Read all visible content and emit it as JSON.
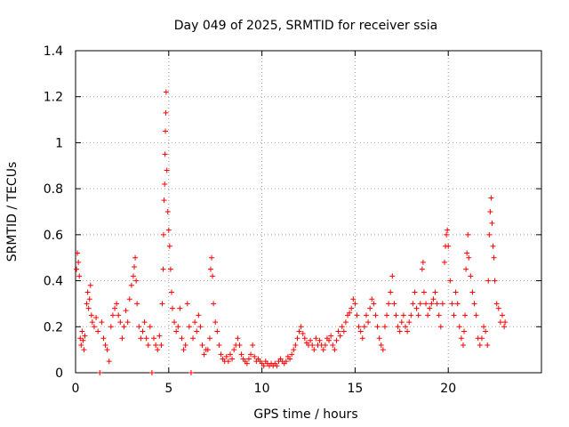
{
  "chart_data": {
    "type": "scatter",
    "title": "Day 049 of 2025, SRMTID for receiver ssia",
    "xlabel": "GPS time / hours",
    "ylabel": "SRMTID / TECUs",
    "xlim": [
      0,
      25
    ],
    "ylim": [
      0,
      1.4
    ],
    "x_ticks": [
      0,
      5,
      10,
      15,
      20
    ],
    "y_ticks": [
      0,
      0.2,
      0.4,
      0.6,
      0.8,
      1.0,
      1.2,
      1.4
    ],
    "x_tick_labels": [
      "0",
      "5",
      "10",
      "15",
      "20"
    ],
    "y_tick_labels": [
      "0",
      "0.2",
      "0.4",
      "0.6",
      "0.8",
      "1",
      "1.2",
      "1.4"
    ],
    "grid": true,
    "marker": "+",
    "color": "#ff0000",
    "series": [
      {
        "name": "SRMTID",
        "points": [
          [
            0.05,
            0.45
          ],
          [
            0.1,
            0.52
          ],
          [
            0.15,
            0.48
          ],
          [
            0.2,
            0.42
          ],
          [
            0.25,
            0.15
          ],
          [
            0.3,
            0.12
          ],
          [
            0.35,
            0.18
          ],
          [
            0.4,
            0.14
          ],
          [
            0.45,
            0.1
          ],
          [
            0.5,
            0.16
          ],
          [
            0.6,
            0.3
          ],
          [
            0.65,
            0.35
          ],
          [
            0.7,
            0.28
          ],
          [
            0.75,
            0.32
          ],
          [
            0.8,
            0.38
          ],
          [
            0.85,
            0.25
          ],
          [
            0.9,
            0.22
          ],
          [
            1.0,
            0.2
          ],
          [
            1.1,
            0.24
          ],
          [
            1.2,
            0.18
          ],
          [
            1.3,
            0.0
          ],
          [
            1.4,
            0.22
          ],
          [
            1.5,
            0.15
          ],
          [
            1.6,
            0.12
          ],
          [
            1.7,
            0.1
          ],
          [
            1.8,
            0.05
          ],
          [
            1.9,
            0.2
          ],
          [
            2.0,
            0.25
          ],
          [
            2.1,
            0.28
          ],
          [
            2.2,
            0.3
          ],
          [
            2.3,
            0.25
          ],
          [
            2.4,
            0.22
          ],
          [
            2.5,
            0.15
          ],
          [
            2.6,
            0.2
          ],
          [
            2.7,
            0.27
          ],
          [
            2.8,
            0.22
          ],
          [
            2.9,
            0.32
          ],
          [
            3.0,
            0.38
          ],
          [
            3.1,
            0.42
          ],
          [
            3.15,
            0.46
          ],
          [
            3.2,
            0.5
          ],
          [
            3.25,
            0.4
          ],
          [
            3.3,
            0.3
          ],
          [
            3.4,
            0.2
          ],
          [
            3.5,
            0.15
          ],
          [
            3.6,
            0.18
          ],
          [
            3.7,
            0.22
          ],
          [
            3.8,
            0.15
          ],
          [
            3.9,
            0.12
          ],
          [
            4.0,
            0.2
          ],
          [
            4.1,
            0.0
          ],
          [
            4.2,
            0.15
          ],
          [
            4.3,
            0.12
          ],
          [
            4.4,
            0.1
          ],
          [
            4.5,
            0.16
          ],
          [
            4.6,
            0.12
          ],
          [
            4.65,
            0.3
          ],
          [
            4.7,
            0.45
          ],
          [
            4.72,
            0.6
          ],
          [
            4.75,
            0.75
          ],
          [
            4.78,
            0.82
          ],
          [
            4.8,
            0.95
          ],
          [
            4.82,
            1.05
          ],
          [
            4.84,
            1.13
          ],
          [
            4.86,
            1.22
          ],
          [
            4.9,
            0.88
          ],
          [
            4.95,
            0.7
          ],
          [
            5.0,
            0.62
          ],
          [
            5.05,
            0.55
          ],
          [
            5.1,
            0.45
          ],
          [
            5.15,
            0.35
          ],
          [
            5.2,
            0.28
          ],
          [
            5.3,
            0.22
          ],
          [
            5.4,
            0.18
          ],
          [
            5.5,
            0.2
          ],
          [
            5.6,
            0.28
          ],
          [
            5.7,
            0.15
          ],
          [
            5.8,
            0.1
          ],
          [
            5.9,
            0.12
          ],
          [
            6.0,
            0.3
          ],
          [
            6.1,
            0.2
          ],
          [
            6.2,
            0.0
          ],
          [
            6.3,
            0.15
          ],
          [
            6.4,
            0.22
          ],
          [
            6.5,
            0.18
          ],
          [
            6.6,
            0.25
          ],
          [
            6.7,
            0.2
          ],
          [
            6.8,
            0.12
          ],
          [
            6.9,
            0.08
          ],
          [
            7.0,
            0.1
          ],
          [
            7.1,
            0.1
          ],
          [
            7.2,
            0.15
          ],
          [
            7.25,
            0.45
          ],
          [
            7.3,
            0.5
          ],
          [
            7.35,
            0.42
          ],
          [
            7.4,
            0.3
          ],
          [
            7.5,
            0.22
          ],
          [
            7.6,
            0.18
          ],
          [
            7.7,
            0.12
          ],
          [
            7.8,
            0.08
          ],
          [
            7.9,
            0.06
          ],
          [
            8.0,
            0.05
          ],
          [
            8.1,
            0.07
          ],
          [
            8.2,
            0.05
          ],
          [
            8.3,
            0.08
          ],
          [
            8.4,
            0.06
          ],
          [
            8.5,
            0.1
          ],
          [
            8.6,
            0.12
          ],
          [
            8.7,
            0.15
          ],
          [
            8.8,
            0.12
          ],
          [
            8.9,
            0.08
          ],
          [
            9.0,
            0.06
          ],
          [
            9.1,
            0.05
          ],
          [
            9.2,
            0.04
          ],
          [
            9.3,
            0.06
          ],
          [
            9.4,
            0.08
          ],
          [
            9.5,
            0.12
          ],
          [
            9.6,
            0.07
          ],
          [
            9.7,
            0.05
          ],
          [
            9.8,
            0.06
          ],
          [
            9.9,
            0.05
          ],
          [
            10.0,
            0.04
          ],
          [
            10.1,
            0.03
          ],
          [
            10.2,
            0.05
          ],
          [
            10.3,
            0.04
          ],
          [
            10.4,
            0.03
          ],
          [
            10.5,
            0.04
          ],
          [
            10.6,
            0.03
          ],
          [
            10.7,
            0.04
          ],
          [
            10.8,
            0.03
          ],
          [
            10.9,
            0.05
          ],
          [
            11.0,
            0.06
          ],
          [
            11.1,
            0.05
          ],
          [
            11.2,
            0.04
          ],
          [
            11.3,
            0.05
          ],
          [
            11.4,
            0.07
          ],
          [
            11.5,
            0.06
          ],
          [
            11.6,
            0.08
          ],
          [
            11.7,
            0.1
          ],
          [
            11.8,
            0.12
          ],
          [
            11.9,
            0.15
          ],
          [
            12.0,
            0.18
          ],
          [
            12.1,
            0.2
          ],
          [
            12.2,
            0.17
          ],
          [
            12.3,
            0.15
          ],
          [
            12.4,
            0.13
          ],
          [
            12.5,
            0.12
          ],
          [
            12.6,
            0.14
          ],
          [
            12.7,
            0.12
          ],
          [
            12.8,
            0.1
          ],
          [
            12.9,
            0.15
          ],
          [
            13.0,
            0.12
          ],
          [
            13.1,
            0.14
          ],
          [
            13.2,
            0.12
          ],
          [
            13.3,
            0.1
          ],
          [
            13.4,
            0.12
          ],
          [
            13.5,
            0.15
          ],
          [
            13.6,
            0.14
          ],
          [
            13.7,
            0.16
          ],
          [
            13.8,
            0.12
          ],
          [
            13.9,
            0.1
          ],
          [
            14.0,
            0.14
          ],
          [
            14.1,
            0.18
          ],
          [
            14.2,
            0.16
          ],
          [
            14.3,
            0.2
          ],
          [
            14.4,
            0.18
          ],
          [
            14.5,
            0.22
          ],
          [
            14.6,
            0.25
          ],
          [
            14.7,
            0.26
          ],
          [
            14.8,
            0.28
          ],
          [
            14.9,
            0.32
          ],
          [
            15.0,
            0.3
          ],
          [
            15.1,
            0.25
          ],
          [
            15.2,
            0.2
          ],
          [
            15.3,
            0.18
          ],
          [
            15.4,
            0.15
          ],
          [
            15.5,
            0.2
          ],
          [
            15.6,
            0.25
          ],
          [
            15.7,
            0.22
          ],
          [
            15.8,
            0.28
          ],
          [
            15.9,
            0.32
          ],
          [
            16.0,
            0.3
          ],
          [
            16.1,
            0.25
          ],
          [
            16.2,
            0.2
          ],
          [
            16.3,
            0.15
          ],
          [
            16.4,
            0.12
          ],
          [
            16.5,
            0.1
          ],
          [
            16.6,
            0.2
          ],
          [
            16.7,
            0.25
          ],
          [
            16.8,
            0.3
          ],
          [
            16.9,
            0.35
          ],
          [
            17.0,
            0.42
          ],
          [
            17.1,
            0.3
          ],
          [
            17.2,
            0.25
          ],
          [
            17.3,
            0.2
          ],
          [
            17.4,
            0.18
          ],
          [
            17.5,
            0.22
          ],
          [
            17.6,
            0.25
          ],
          [
            17.7,
            0.2
          ],
          [
            17.8,
            0.18
          ],
          [
            17.9,
            0.22
          ],
          [
            18.0,
            0.25
          ],
          [
            18.1,
            0.3
          ],
          [
            18.2,
            0.35
          ],
          [
            18.3,
            0.28
          ],
          [
            18.4,
            0.25
          ],
          [
            18.5,
            0.3
          ],
          [
            18.6,
            0.45
          ],
          [
            18.65,
            0.48
          ],
          [
            18.7,
            0.35
          ],
          [
            18.8,
            0.3
          ],
          [
            18.9,
            0.25
          ],
          [
            19.0,
            0.28
          ],
          [
            19.1,
            0.3
          ],
          [
            19.2,
            0.32
          ],
          [
            19.3,
            0.35
          ],
          [
            19.4,
            0.3
          ],
          [
            19.5,
            0.25
          ],
          [
            19.6,
            0.2
          ],
          [
            19.7,
            0.3
          ],
          [
            19.8,
            0.48
          ],
          [
            19.85,
            0.55
          ],
          [
            19.9,
            0.6
          ],
          [
            19.95,
            0.62
          ],
          [
            20.0,
            0.55
          ],
          [
            20.1,
            0.4
          ],
          [
            20.2,
            0.3
          ],
          [
            20.3,
            0.25
          ],
          [
            20.4,
            0.35
          ],
          [
            20.5,
            0.3
          ],
          [
            20.6,
            0.2
          ],
          [
            20.7,
            0.15
          ],
          [
            20.8,
            0.12
          ],
          [
            20.85,
            0.18
          ],
          [
            20.9,
            0.25
          ],
          [
            20.95,
            0.45
          ],
          [
            21.0,
            0.52
          ],
          [
            21.05,
            0.6
          ],
          [
            21.1,
            0.5
          ],
          [
            21.2,
            0.42
          ],
          [
            21.3,
            0.35
          ],
          [
            21.4,
            0.3
          ],
          [
            21.5,
            0.25
          ],
          [
            21.6,
            0.15
          ],
          [
            21.7,
            0.12
          ],
          [
            21.8,
            0.15
          ],
          [
            21.9,
            0.2
          ],
          [
            22.0,
            0.18
          ],
          [
            22.1,
            0.12
          ],
          [
            22.15,
            0.4
          ],
          [
            22.2,
            0.6
          ],
          [
            22.25,
            0.7
          ],
          [
            22.3,
            0.76
          ],
          [
            22.35,
            0.65
          ],
          [
            22.4,
            0.55
          ],
          [
            22.45,
            0.5
          ],
          [
            22.5,
            0.4
          ],
          [
            22.6,
            0.3
          ],
          [
            22.7,
            0.28
          ],
          [
            22.8,
            0.22
          ],
          [
            22.9,
            0.25
          ],
          [
            23.0,
            0.2
          ],
          [
            23.05,
            0.22
          ]
        ]
      }
    ]
  }
}
